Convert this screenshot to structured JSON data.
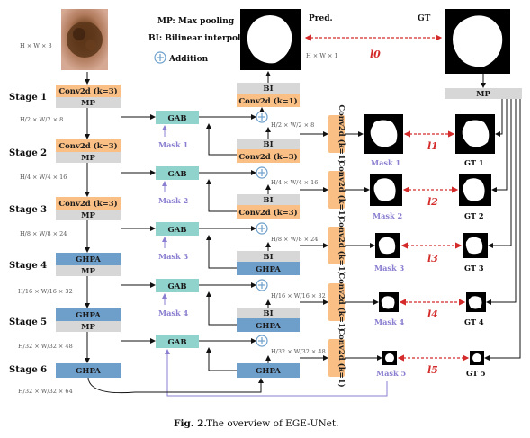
{
  "legend": {
    "mp": "MP: Max pooling",
    "bi": "BI: Bilinear interpolation",
    "addition": "Addition"
  },
  "input_dim": "H × W × 3",
  "pred_label": "Pred.",
  "gt_label": "GT",
  "pred_dim": "H × W × 1",
  "loss0": "l0",
  "stages": [
    "Stage 1",
    "Stage 2",
    "Stage 3",
    "Stage 4",
    "Stage 5",
    "Stage 6"
  ],
  "encoder": [
    {
      "top": "Conv2d (k=3)",
      "bottom": "MP",
      "dim": "H/2 × W/2 × 8"
    },
    {
      "top": "Conv2d (k=3)",
      "bottom": "MP",
      "dim": "H/4 × W/4 × 16"
    },
    {
      "top": "Conv2d (k=3)",
      "bottom": "MP",
      "dim": "H/8 × W/8 × 24"
    },
    {
      "top": "GHPA",
      "bottom": "MP",
      "dim": "H/16 × W/16 × 32"
    },
    {
      "top": "GHPA",
      "bottom": "MP",
      "dim": "H/32 × W/32 × 48"
    },
    {
      "top": "GHPA",
      "bottom": "",
      "dim": "H/32 × W/32 × 64"
    }
  ],
  "gab_label": "GAB",
  "masks": [
    "Mask 1",
    "Mask 2",
    "Mask 3",
    "Mask 4",
    "Mask 5"
  ],
  "decoder": [
    {
      "bi": "BI",
      "block": "Conv2d (k=1)",
      "dim": "H/2 × W/2 × 8"
    },
    {
      "bi": "BI",
      "block": "Conv2d (k=3)",
      "dim": "H/4 × W/4 × 16"
    },
    {
      "bi": "BI",
      "block": "Conv2d (k=3)",
      "dim": "H/8 × W/8 × 24"
    },
    {
      "bi": "BI",
      "block": "GHPA",
      "dim": "H/16 × W/16 × 32"
    },
    {
      "bi": "BI",
      "block": "GHPA",
      "dim": "H/32 × W/32 × 48"
    },
    {
      "bi": "",
      "block": "GHPA",
      "dim": ""
    }
  ],
  "side_conv": [
    "Conv2d (k=1)",
    "Conv2d (k=1)",
    "Conv2d (k=1)",
    "Conv2d (k=1)",
    "Conv2d (k=1)"
  ],
  "gt_mp": "MP",
  "gts": [
    "GT 1",
    "GT 2",
    "GT 3",
    "GT 4",
    "GT 5"
  ],
  "losses": [
    "l1",
    "l2",
    "l3",
    "l4",
    "l5"
  ],
  "caption": {
    "prefix": "Fig. 2.",
    "text": "The overview of EGE-UNet."
  },
  "colors": {
    "conv": "#f9bf85",
    "ghpa": "#6e9fcb",
    "mp": "#d7d7d7",
    "gab": "#8fd3cc",
    "addition": "#6e9fcb",
    "mask_text": "#8a7fd0",
    "loss": "#d42a2a"
  }
}
